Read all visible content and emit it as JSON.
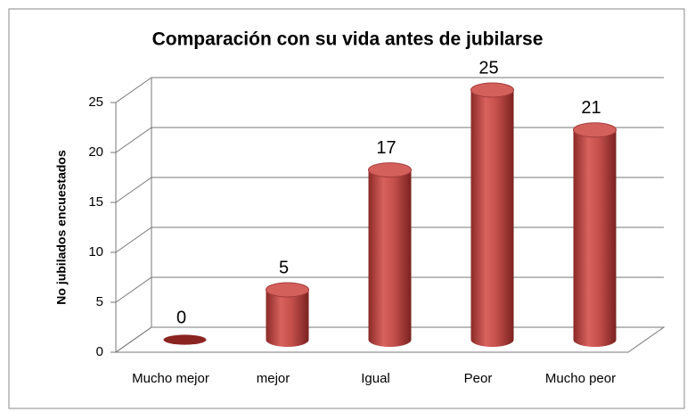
{
  "chart_data": {
    "type": "bar3d",
    "title": "Comparación con su vida antes de jubilarse",
    "ylabel": "No jubilados encuestados",
    "categories": [
      "Mucho mejor",
      "mejor",
      "Igual",
      "Peor",
      "Mucho peor"
    ],
    "values": [
      0,
      5,
      17,
      25,
      21
    ],
    "color": "#c0504d",
    "ylim": [
      0,
      25
    ],
    "yticks": [
      0,
      5,
      10,
      15,
      20,
      25
    ],
    "grid": true
  }
}
